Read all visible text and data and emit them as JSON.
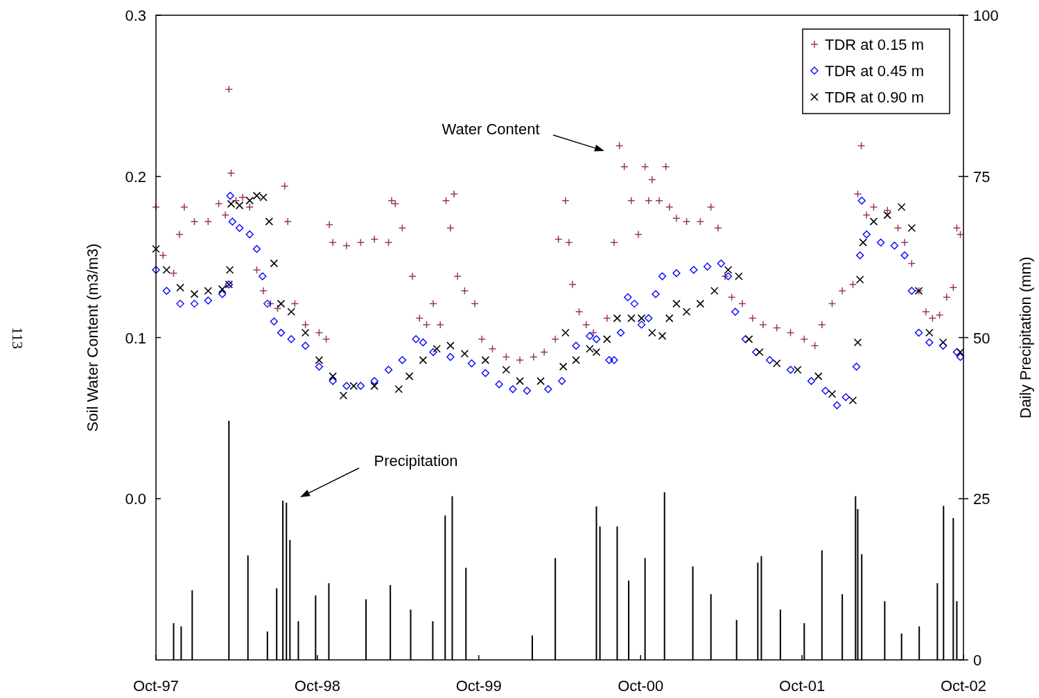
{
  "chart_data": {
    "type": "scatter",
    "ylabel": "Soil Water Content (m3/m3)",
    "y2label": "Daily Precipitation (mm)",
    "xlim": [
      "1997-10-01",
      "2002-10-01"
    ],
    "xticks": [
      {
        "value": "1997-10-01",
        "label": "Oct-97"
      },
      {
        "value": "1998-10-01",
        "label": "Oct-98"
      },
      {
        "value": "1999-10-01",
        "label": "Oct-99"
      },
      {
        "value": "2000-10-01",
        "label": "Oct-00"
      },
      {
        "value": "2001-10-01",
        "label": "Oct-01"
      },
      {
        "value": "2002-10-01",
        "label": "Oct-02"
      }
    ],
    "ylim": [
      -0.1,
      0.3
    ],
    "yticks": [
      {
        "value": 0,
        "label": "0.0"
      },
      0.1,
      0.2,
      0.3
    ],
    "y2lim": [
      0,
      100
    ],
    "y2ticks": [
      0,
      25,
      50,
      75,
      100
    ],
    "grid": false,
    "legend": "top right",
    "annotations": [
      "Water Content",
      "Precipitation",
      "113"
    ],
    "series": [
      {
        "name": "TDR at 0.15 m",
        "color": "#993366",
        "marker": "plus",
        "x": [
          "1997-10-01",
          "1997-10-17",
          "1997-11-10",
          "1997-11-23",
          "1997-12-04",
          "1997-12-27",
          "1998-01-27",
          "1998-02-20",
          "1998-03-07",
          "1998-03-15",
          "1998-03-20",
          "1998-03-31",
          "1998-04-15",
          "1998-05-01",
          "1998-05-17",
          "1998-06-01",
          "1998-06-17",
          "1998-07-03",
          "1998-07-19",
          "1998-07-26",
          "1998-08-11",
          "1998-09-04",
          "1998-10-05",
          "1998-10-21",
          "1998-10-28",
          "1998-11-05",
          "1998-12-06",
          "1999-01-07",
          "1999-02-07",
          "1999-03-11",
          "1999-03-18",
          "1999-03-26",
          "1999-04-11",
          "1999-05-04",
          "1999-05-20",
          "1999-06-05",
          "1999-06-20",
          "1999-07-06",
          "1999-07-19",
          "1999-07-29",
          "1999-08-06",
          "1999-08-14",
          "1999-08-30",
          "1999-09-22",
          "1999-10-08",
          "1999-11-01",
          "1999-12-02",
          "2000-01-02",
          "2000-02-02",
          "2000-02-26",
          "2000-03-22",
          "2000-03-29",
          "2000-04-14",
          "2000-04-22",
          "2000-04-30",
          "2000-05-15",
          "2000-05-31",
          "2000-06-16",
          "2000-07-17",
          "2000-08-02",
          "2000-08-14",
          "2000-08-25",
          "2000-09-10",
          "2000-09-26",
          "2000-10-11",
          "2000-10-19",
          "2000-10-27",
          "2000-11-12",
          "2000-11-27",
          "2000-12-05",
          "2000-12-21",
          "2001-01-13",
          "2001-02-13",
          "2001-03-09",
          "2001-03-25",
          "2001-04-10",
          "2001-04-25",
          "2001-05-19",
          "2001-06-11",
          "2001-07-05",
          "2001-08-05",
          "2001-09-05",
          "2001-10-06",
          "2001-10-30",
          "2001-11-15",
          "2001-12-08",
          "2001-12-31",
          "2002-01-24",
          "2002-02-04",
          "2002-02-12",
          "2002-02-24",
          "2002-03-12",
          "2002-04-12",
          "2002-05-06",
          "2002-05-21",
          "2002-06-06",
          "2002-06-22",
          "2002-07-08",
          "2002-07-23",
          "2002-08-08",
          "2002-08-24",
          "2002-09-08",
          "2002-09-16",
          "2002-09-24"
        ],
        "values": [
          0.181,
          0.151,
          0.14,
          0.164,
          0.181,
          0.172,
          0.172,
          0.183,
          0.176,
          0.254,
          0.202,
          0.185,
          0.187,
          0.181,
          0.142,
          0.129,
          0.121,
          0.118,
          0.194,
          0.172,
          0.121,
          0.108,
          0.103,
          0.099,
          0.17,
          0.159,
          0.157,
          0.159,
          0.161,
          0.159,
          0.185,
          0.183,
          0.168,
          0.138,
          0.112,
          0.108,
          0.121,
          0.108,
          0.185,
          0.168,
          0.189,
          0.138,
          0.129,
          0.121,
          0.099,
          0.093,
          0.088,
          0.086,
          0.088,
          0.091,
          0.099,
          0.161,
          0.185,
          0.159,
          0.133,
          0.116,
          0.108,
          0.103,
          0.112,
          0.159,
          0.219,
          0.206,
          0.185,
          0.164,
          0.206,
          0.185,
          0.198,
          0.185,
          0.206,
          0.181,
          0.174,
          0.172,
          0.172,
          0.181,
          0.168,
          0.138,
          0.125,
          0.121,
          0.112,
          0.108,
          0.106,
          0.103,
          0.099,
          0.095,
          0.108,
          0.121,
          0.129,
          0.133,
          0.189,
          0.219,
          0.176,
          0.181,
          0.179,
          0.168,
          0.159,
          0.146,
          0.129,
          0.116,
          0.112,
          0.114,
          0.125,
          0.131,
          0.168,
          0.164
        ]
      },
      {
        "name": "TDR at 0.45 m",
        "color": "#0000ff",
        "marker": "diamond",
        "x": [
          "1997-10-01",
          "1997-10-25",
          "1997-11-25",
          "1997-12-27",
          "1998-01-27",
          "1998-02-28",
          "1998-03-15",
          "1998-03-18",
          "1998-03-23",
          "1998-04-08",
          "1998-05-01",
          "1998-05-17",
          "1998-05-30",
          "1998-06-10",
          "1998-06-25",
          "1998-07-11",
          "1998-08-03",
          "1998-09-04",
          "1998-10-05",
          "1998-11-05",
          "1998-12-06",
          "1999-01-07",
          "1999-02-07",
          "1999-03-11",
          "1999-04-11",
          "1999-05-12",
          "1999-05-28",
          "1999-06-20",
          "1999-07-29",
          "1999-09-15",
          "1999-10-16",
          "1999-11-16",
          "1999-12-17",
          "2000-01-18",
          "2000-03-06",
          "2000-04-06",
          "2000-05-08",
          "2000-06-08",
          "2000-06-23",
          "2000-07-22",
          "2000-08-02",
          "2000-08-17",
          "2000-09-02",
          "2000-09-17",
          "2000-10-03",
          "2000-10-19",
          "2000-11-04",
          "2000-11-19",
          "2000-12-21",
          "2001-01-29",
          "2001-03-01",
          "2001-04-01",
          "2001-04-17",
          "2001-05-03",
          "2001-05-26",
          "2001-06-19",
          "2001-07-20",
          "2001-09-05",
          "2001-10-22",
          "2001-11-23",
          "2001-12-19",
          "2002-01-08",
          "2002-02-01",
          "2002-02-09",
          "2002-02-13",
          "2002-02-24",
          "2002-03-28",
          "2002-04-28",
          "2002-05-21",
          "2002-06-06",
          "2002-06-22",
          "2002-07-16",
          "2002-08-16",
          "2002-09-16",
          "2002-09-24"
        ],
        "values": [
          0.142,
          0.129,
          0.121,
          0.121,
          0.123,
          0.127,
          0.133,
          0.188,
          0.172,
          0.168,
          0.164,
          0.155,
          0.138,
          0.121,
          0.11,
          0.103,
          0.099,
          0.095,
          0.082,
          0.073,
          0.07,
          0.07,
          0.073,
          0.08,
          0.086,
          0.099,
          0.097,
          0.091,
          0.088,
          0.084,
          0.078,
          0.071,
          0.068,
          0.067,
          0.068,
          0.073,
          0.095,
          0.101,
          0.099,
          0.086,
          0.086,
          0.103,
          0.125,
          0.121,
          0.108,
          0.112,
          0.127,
          0.138,
          0.14,
          0.142,
          0.144,
          0.146,
          0.138,
          0.116,
          0.099,
          0.091,
          0.086,
          0.08,
          0.073,
          0.067,
          0.058,
          0.063,
          0.082,
          0.151,
          0.185,
          0.164,
          0.159,
          0.157,
          0.151,
          0.129,
          0.103,
          0.097,
          0.095,
          0.091,
          0.088
        ]
      },
      {
        "name": "TDR at 0.90 m",
        "color": "#000000",
        "marker": "cross",
        "x": [
          "1997-10-01",
          "1997-10-25",
          "1997-11-25",
          "1997-12-27",
          "1998-01-27",
          "1998-02-28",
          "1998-03-15",
          "1998-03-17",
          "1998-03-20",
          "1998-04-08",
          "1998-05-01",
          "1998-05-17",
          "1998-06-01",
          "1998-06-14",
          "1998-06-25",
          "1998-07-11",
          "1998-08-03",
          "1998-09-04",
          "1998-10-05",
          "1998-11-05",
          "1998-11-29",
          "1998-12-22",
          "1999-02-07",
          "1999-04-03",
          "1999-04-27",
          "1999-05-28",
          "1999-06-28",
          "1999-07-29",
          "1999-08-30",
          "1999-10-16",
          "1999-12-02",
          "2000-01-02",
          "2000-02-18",
          "2000-04-09",
          "2000-04-14",
          "2000-05-08",
          "2000-06-08",
          "2000-06-23",
          "2000-07-17",
          "2000-08-09",
          "2000-09-10",
          "2000-10-03",
          "2000-10-27",
          "2000-11-19",
          "2000-12-05",
          "2000-12-21",
          "2001-01-13",
          "2001-02-13",
          "2001-03-17",
          "2001-04-17",
          "2001-05-11",
          "2001-06-03",
          "2001-06-27",
          "2001-08-05",
          "2001-09-21",
          "2001-11-07",
          "2001-12-08",
          "2002-01-24",
          "2002-02-04",
          "2002-02-09",
          "2002-02-16",
          "2002-03-12",
          "2002-04-12",
          "2002-05-14",
          "2002-06-06",
          "2002-06-22",
          "2002-07-16",
          "2002-08-16",
          "2002-09-24"
        ],
        "values": [
          0.155,
          0.142,
          0.131,
          0.127,
          0.129,
          0.13,
          0.133,
          0.142,
          0.183,
          0.182,
          0.185,
          0.188,
          0.187,
          0.172,
          0.146,
          0.121,
          0.116,
          0.103,
          0.086,
          0.076,
          0.064,
          0.07,
          0.07,
          0.068,
          0.076,
          0.086,
          0.093,
          0.095,
          0.09,
          0.086,
          0.08,
          0.073,
          0.073,
          0.082,
          0.103,
          0.086,
          0.093,
          0.091,
          0.099,
          0.112,
          0.112,
          0.112,
          0.103,
          0.101,
          0.112,
          0.121,
          0.116,
          0.121,
          0.129,
          0.142,
          0.138,
          0.099,
          0.091,
          0.084,
          0.08,
          0.076,
          0.065,
          0.061,
          0.097,
          0.136,
          0.159,
          0.172,
          0.176,
          0.181,
          0.168,
          0.129,
          0.103,
          0.097,
          0.091
        ]
      },
      {
        "type": "bar",
        "axis": "y2",
        "color": "#000000",
        "x": [
          "1997-11-10",
          "1997-11-27",
          "1997-12-22",
          "1998-03-15",
          "1998-04-27",
          "1998-06-10",
          "1998-07-01",
          "1998-07-15",
          "1998-07-23",
          "1998-07-31",
          "1998-08-19",
          "1998-09-27",
          "1998-10-27",
          "1999-01-19",
          "1999-03-15",
          "1999-04-30",
          "1999-06-19",
          "1999-07-17",
          "1999-08-02",
          "1999-09-02",
          "2000-01-30",
          "2000-03-22",
          "2000-06-23",
          "2000-07-01",
          "2000-08-09",
          "2000-09-04",
          "2000-10-11",
          "2000-11-24",
          "2001-01-27",
          "2001-03-09",
          "2001-05-06",
          "2001-06-23",
          "2001-07-01",
          "2001-08-13",
          "2001-10-06",
          "2001-11-15",
          "2001-12-31",
          "2002-01-30",
          "2002-02-04",
          "2002-02-13",
          "2002-04-06",
          "2002-05-14",
          "2002-06-23",
          "2002-08-03",
          "2002-08-17",
          "2002-09-08",
          "2002-09-16"
        ],
        "values": [
          5.7,
          5.2,
          10.8,
          37.1,
          16.2,
          4.4,
          11.1,
          24.7,
          24.4,
          18.6,
          6.0,
          10.0,
          11.9,
          9.4,
          11.6,
          7.8,
          6.0,
          22.4,
          25.4,
          14.3,
          3.8,
          15.8,
          23.8,
          20.7,
          20.7,
          12.3,
          15.8,
          26.0,
          14.5,
          10.2,
          6.2,
          15.1,
          16.1,
          7.8,
          5.7,
          17.0,
          10.2,
          25.4,
          23.4,
          16.4,
          9.1,
          4.1,
          5.2,
          11.9,
          23.9,
          22.0,
          9.1
        ]
      }
    ]
  }
}
